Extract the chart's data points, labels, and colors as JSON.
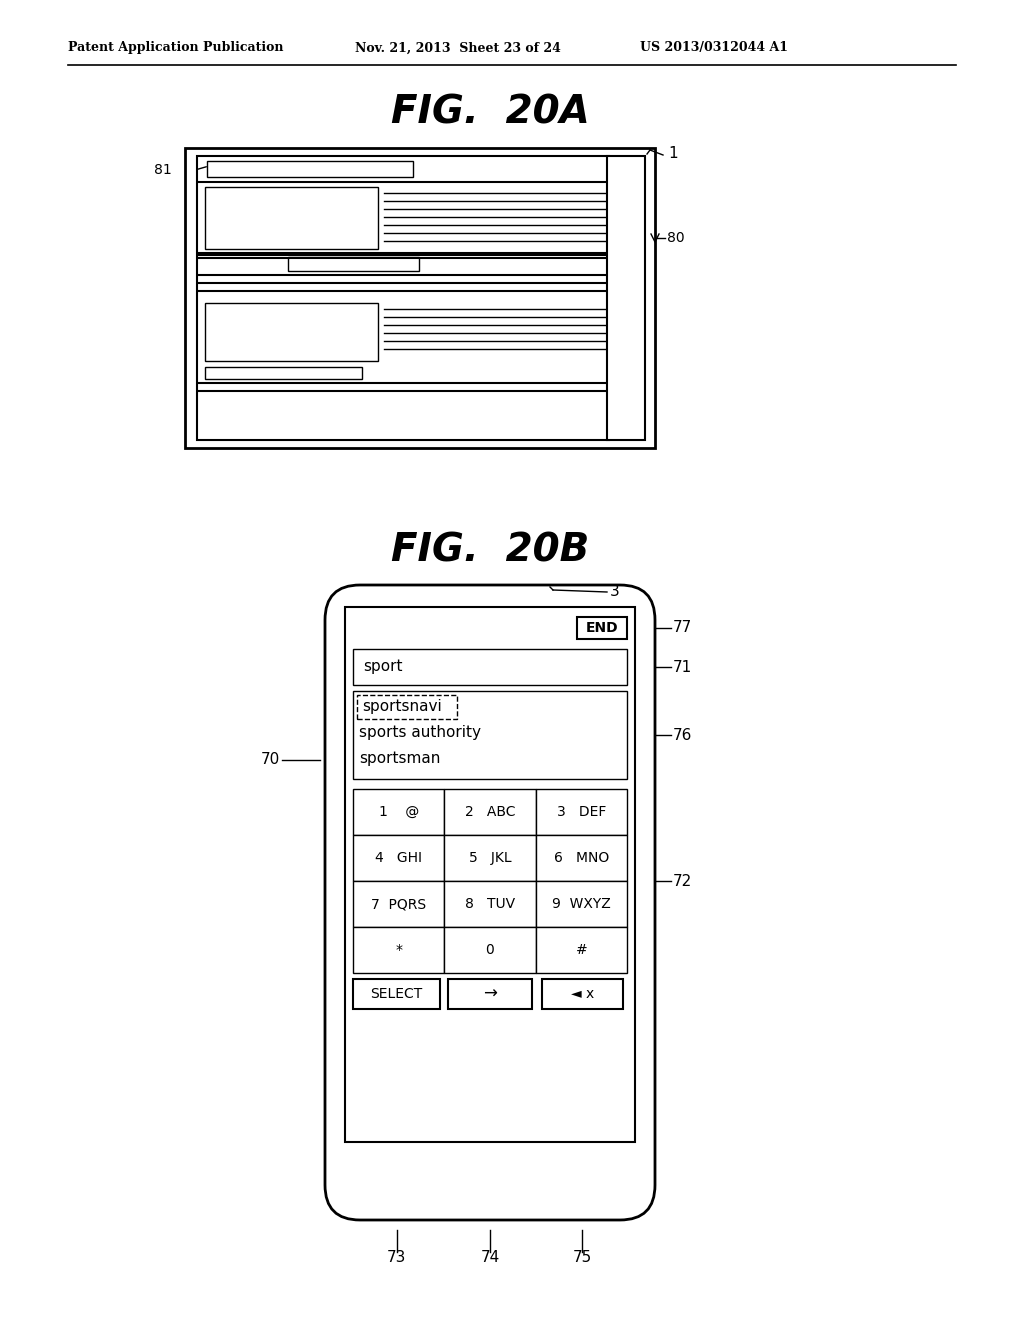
{
  "bg_color": "#ffffff",
  "header_left": "Patent Application Publication",
  "header_middle": "Nov. 21, 2013  Sheet 23 of 24",
  "header_right": "US 2013/0312044 A1",
  "fig20a_title": "FIG.  20A",
  "fig20b_title": "FIG.  20B",
  "label_1": "1",
  "label_3": "3",
  "label_70": "70",
  "label_71": "71",
  "label_72": "72",
  "label_73": "73",
  "label_74": "74",
  "label_75": "75",
  "label_76": "76",
  "label_77": "77",
  "label_80": "80",
  "label_81": "81",
  "search_text": "sport",
  "suggest1": "sportsnavi",
  "suggest2": "sports authority",
  "suggest3": "sportsman",
  "key_rows": [
    [
      "1    @",
      "2   ABC",
      "3   DEF"
    ],
    [
      "4   GHI",
      "5   JKL",
      "6   MNO"
    ],
    [
      "7  PQRS",
      "8   TUV",
      "9  WXYZ"
    ],
    [
      "*",
      "0",
      "#"
    ]
  ],
  "btn_select": "SELECT",
  "btn_arrow": "→",
  "btn_back": "◄ x"
}
